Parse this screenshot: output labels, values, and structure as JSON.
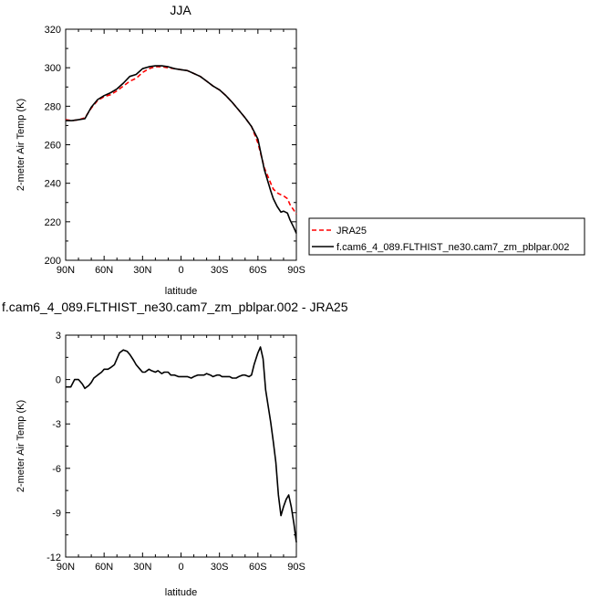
{
  "chart_data": [
    {
      "type": "line",
      "title": "JJA",
      "xlabel": "latitude",
      "ylabel": "2-meter Air Temp (K)",
      "xlim": [
        90,
        -90
      ],
      "ylim": [
        200,
        320
      ],
      "x_ticks": [
        "90N",
        "60N",
        "30N",
        "0",
        "30S",
        "60S",
        "90S"
      ],
      "y_ticks": [
        "200",
        "220",
        "240",
        "260",
        "280",
        "300",
        "320"
      ],
      "x_tick_values": [
        90,
        60,
        30,
        0,
        -30,
        -60,
        -90
      ],
      "y_tick_values": [
        200,
        220,
        240,
        260,
        280,
        300,
        320
      ],
      "legend_position": "right, outside plot",
      "series": [
        {
          "name": "JRA25",
          "color": "#ff0000",
          "style": "dashed",
          "x": [
            90,
            85,
            80,
            75,
            70,
            65,
            60,
            55,
            50,
            45,
            40,
            35,
            30,
            25,
            20,
            15,
            10,
            5,
            0,
            -5,
            -10,
            -15,
            -20,
            -25,
            -30,
            -35,
            -40,
            -45,
            -50,
            -55,
            -60,
            -65,
            -70,
            -72,
            -75,
            -78,
            -80,
            -83,
            -85,
            -88,
            -90
          ],
          "y": [
            273,
            272.5,
            273,
            274,
            279,
            283,
            285,
            286,
            288,
            290.5,
            293,
            294.5,
            297.5,
            299.5,
            300.5,
            300.5,
            300,
            299.5,
            299,
            298.5,
            297,
            295.5,
            293,
            290.5,
            288.5,
            285.5,
            282,
            278,
            274,
            269.5,
            261,
            248,
            240,
            237,
            235,
            234,
            233.5,
            232,
            229,
            226,
            224
          ]
        },
        {
          "name": "f.cam6_4_089.FLTHIST_ne30.cam7_zm_pblpar.002",
          "color": "#000000",
          "style": "solid",
          "x": [
            90,
            85,
            80,
            75,
            70,
            65,
            60,
            55,
            50,
            45,
            40,
            35,
            30,
            25,
            20,
            15,
            10,
            5,
            0,
            -5,
            -10,
            -15,
            -20,
            -25,
            -30,
            -35,
            -40,
            -45,
            -50,
            -55,
            -60,
            -65,
            -70,
            -72,
            -75,
            -78,
            -80,
            -83,
            -85,
            -88,
            -90
          ],
          "y": [
            272.5,
            272.5,
            273,
            273.5,
            279.5,
            283.5,
            285.5,
            287,
            289,
            292,
            295.5,
            296.5,
            299.5,
            300.5,
            301,
            301,
            300.5,
            299.5,
            299,
            298.5,
            297,
            295.5,
            293,
            290.5,
            288.5,
            285.5,
            282,
            278,
            274,
            269.5,
            263,
            247,
            236,
            232,
            228,
            225,
            225.5,
            224.5,
            221,
            217,
            214
          ]
        }
      ]
    },
    {
      "type": "line",
      "title": "f.cam6_4_089.FLTHIST_ne30.cam7_zm_pblpar.002 - JRA25",
      "xlabel": "latitude",
      "ylabel": "2-meter Air Temp (K)",
      "xlim": [
        90,
        -90
      ],
      "ylim": [
        -12,
        3
      ],
      "x_ticks": [
        "90N",
        "60N",
        "30N",
        "0",
        "30S",
        "60S",
        "90S"
      ],
      "y_ticks": [
        "-12",
        "-9",
        "-6",
        "-3",
        "0",
        "3"
      ],
      "x_tick_values": [
        90,
        60,
        30,
        0,
        -30,
        -60,
        -90
      ],
      "y_tick_values": [
        -12,
        -9,
        -6,
        -3,
        0,
        3
      ],
      "series": [
        {
          "color": "#000000",
          "style": "solid",
          "x": [
            90,
            86,
            83,
            80,
            77,
            75,
            72,
            70,
            68,
            65,
            62,
            60,
            57,
            55,
            52,
            50,
            48,
            45,
            42,
            40,
            37,
            35,
            32,
            30,
            28,
            25,
            23,
            20,
            18,
            15,
            13,
            10,
            8,
            5,
            2,
            0,
            -2,
            -5,
            -8,
            -10,
            -13,
            -15,
            -18,
            -20,
            -23,
            -25,
            -28,
            -30,
            -32,
            -35,
            -38,
            -40,
            -43,
            -45,
            -48,
            -50,
            -53,
            -55,
            -57,
            -60,
            -62,
            -64,
            -66,
            -68,
            -70,
            -72,
            -74,
            -76,
            -78,
            -80,
            -82,
            -84,
            -86,
            -88,
            -90
          ],
          "y": [
            -0.5,
            -0.5,
            0.0,
            0.0,
            -0.3,
            -0.6,
            -0.4,
            -0.2,
            0.1,
            0.3,
            0.5,
            0.7,
            0.7,
            0.8,
            1.0,
            1.4,
            1.8,
            2.0,
            1.9,
            1.7,
            1.3,
            1.0,
            0.7,
            0.5,
            0.5,
            0.7,
            0.6,
            0.5,
            0.6,
            0.4,
            0.5,
            0.5,
            0.3,
            0.3,
            0.2,
            0.2,
            0.2,
            0.2,
            0.1,
            0.2,
            0.3,
            0.3,
            0.3,
            0.4,
            0.3,
            0.2,
            0.3,
            0.3,
            0.2,
            0.2,
            0.2,
            0.1,
            0.1,
            0.2,
            0.3,
            0.3,
            0.2,
            0.3,
            1.0,
            1.8,
            2.2,
            1.4,
            -0.7,
            -1.8,
            -2.9,
            -4.2,
            -5.6,
            -7.8,
            -9.2,
            -8.6,
            -8.1,
            -7.8,
            -8.6,
            -9.7,
            -11.0
          ]
        }
      ]
    }
  ]
}
